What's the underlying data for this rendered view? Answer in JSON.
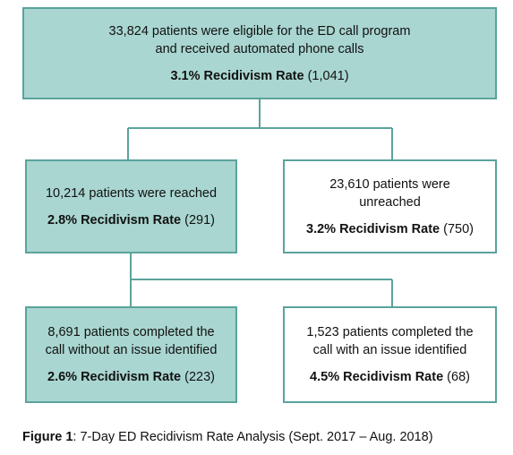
{
  "nodes": [
    {
      "lines": [
        "33,824 patients were eligible for the ED call program",
        "and received automated phone calls"
      ],
      "rate": "3.1% Recidivism Rate",
      "count": "(1,041)"
    },
    {
      "lines": [
        "10,214 patients were reached"
      ],
      "rate": "2.8% Recidivism Rate",
      "count": "(291)"
    },
    {
      "lines": [
        "23,610 patients were",
        "unreached"
      ],
      "rate": "3.2% Recidivism Rate",
      "count": "(750)"
    },
    {
      "lines": [
        "8,691 patients completed the",
        "call without an issue identified"
      ],
      "rate": "2.6% Recidivism Rate",
      "count": "(223)"
    },
    {
      "lines": [
        "1,523 patients completed the",
        "call with an issue identified"
      ],
      "rate": "4.5% Recidivism Rate",
      "count": "(68)"
    }
  ],
  "caption": {
    "label": "Figure 1",
    "text": ": 7-Day ED Recidivism Rate Analysis (Sept. 2017 – Aug. 2018)"
  }
}
